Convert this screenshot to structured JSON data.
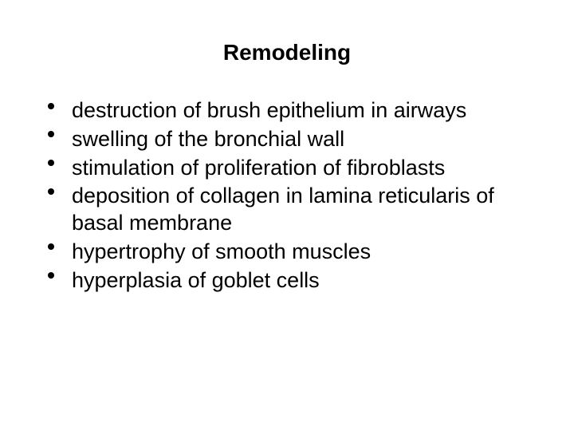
{
  "slide": {
    "title": "Remodeling",
    "title_fontsize": 28,
    "title_fontweight": "bold",
    "body_fontsize": 27,
    "line_height": 1.25,
    "text_color": "#000000",
    "background_color": "#ffffff",
    "bullets": [
      "destruction of brush epithelium in airways",
      "swelling of the bronchial wall",
      "stimulation of proliferation of fibroblasts",
      "deposition of collagen in lamina reticularis of basal membrane",
      "hypertrophy of smooth muscles",
      "hyperplasia of goblet cells"
    ]
  }
}
